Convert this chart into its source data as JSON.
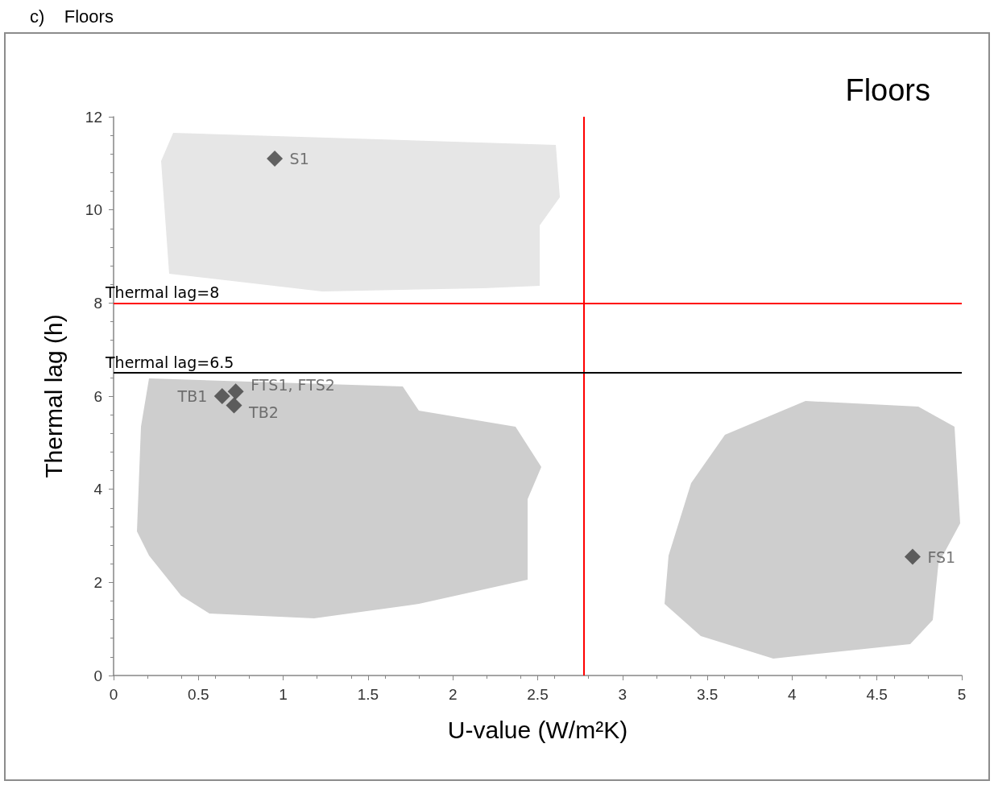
{
  "chart_data": {
    "type": "scatter",
    "title": "c)    Floors",
    "subtitle": "Floors",
    "xlabel": "U-value (W/m²K)",
    "ylabel": "Thermal lag (h)",
    "x": [
      0.95,
      0.64,
      0.72,
      0.71,
      4.71
    ],
    "values": [
      11.1,
      6.0,
      6.1,
      5.8,
      2.55
    ],
    "color": "#404040",
    "marker": "diamond",
    "annotations": [
      {
        "text": "S1",
        "x": 0.95,
        "y": 11.1
      },
      {
        "text": "TB1",
        "x": 0.64,
        "y": 6.0
      },
      {
        "text": "FTS1, FTS2",
        "x": 0.72,
        "y": 6.1
      },
      {
        "text": "TB2",
        "x": 0.71,
        "y": 5.8
      },
      {
        "text": "FS1",
        "x": 4.71,
        "y": 2.55
      }
    ],
    "ref_lines": [
      {
        "axis": "x",
        "value": 2.77,
        "label": null,
        "color": "#ff0000"
      },
      {
        "axis": "y",
        "value": 8,
        "label": "Thermal lag=8",
        "color": "#ff0000"
      },
      {
        "axis": "y",
        "value": 6.5,
        "label": "Thermal lag=6.5",
        "color": "#000000"
      }
    ],
    "xlim": [
      0,
      5
    ],
    "xticks": [
      0,
      0.5,
      1,
      1.5,
      2,
      2.5,
      3,
      3.5,
      4,
      4.5,
      5
    ],
    "ylim": [
      0,
      12
    ],
    "yticks": [
      0,
      2,
      4,
      6,
      8,
      10,
      12
    ],
    "grid": false
  }
}
